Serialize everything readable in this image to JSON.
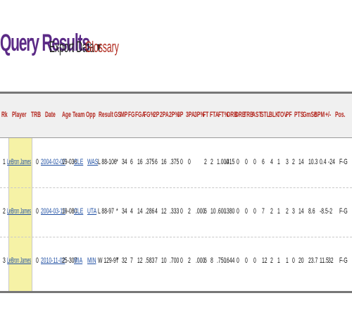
{
  "header": {
    "title": "Query Results",
    "export_label": "Export Data ▾",
    "glossary_label": "Glossary"
  },
  "table": {
    "columns": [
      "Rk",
      "Player",
      "TRB",
      "Date",
      "Age",
      "Team",
      "Opp",
      "Result",
      "GS",
      "MP",
      "FG",
      "FGA",
      "FG%",
      "2P",
      "2PA",
      "2P%",
      "3P",
      "3PA",
      "3P%",
      "FT",
      "FTA",
      "FT%",
      "ORB",
      "DRB",
      "TRB",
      "AST",
      "STL",
      "BLK",
      "TOV",
      "PF",
      "PTS",
      "GmSc",
      "BPM",
      "+/-",
      "Pos."
    ],
    "rows": [
      {
        "rk": "1",
        "player": "LeBron James",
        "trb_h": "0",
        "date": "2004-02-07",
        "age": "19-038",
        "team": "CLE",
        "opp": "WAS",
        "result": "L 88-106",
        "gs": "*",
        "mp": "34",
        "fg": "6",
        "fga": "16",
        "fgp": ".375",
        "p2": "6",
        "p2a": "16",
        "p2p": ".375",
        "p3": "0",
        "p3a": "0",
        "p3p": "",
        "ft": "2",
        "fta": "2",
        "ftp": "1.000",
        "ts": ".415",
        "orb": "0",
        "drb": "0",
        "trb": "0",
        "ast": "6",
        "stl": "4",
        "blk": "1",
        "tov": "3",
        "pf": "2",
        "pts": "14",
        "gmsc": "10.3",
        "bpm": "0.4",
        "pm": "-24",
        "pos": "F-G"
      },
      {
        "rk": "2",
        "player": "LeBron James",
        "trb_h": "0",
        "date": "2004-03-19",
        "age": "19-080",
        "team": "CLE",
        "opp": "UTA",
        "result": "L 88-97",
        "gs": "*",
        "mp": "34",
        "fg": "4",
        "fga": "14",
        "fgp": ".286",
        "p2": "4",
        "p2a": "12",
        "p2p": ".333",
        "p3": "0",
        "p3a": "2",
        "p3p": ".000",
        "ft": "6",
        "fta": "10",
        "ftp": ".600",
        "ts": ".380",
        "orb": "0",
        "drb": "0",
        "trb": "0",
        "ast": "7",
        "stl": "2",
        "blk": "1",
        "tov": "2",
        "pf": "3",
        "pts": "14",
        "gmsc": "8.6",
        "bpm": "-8.5",
        "pm": "-2",
        "pos": "F-G"
      },
      {
        "rk": "3",
        "player": "LeBron James",
        "trb_h": "0",
        "date": "2010-11-02",
        "age": "25-307",
        "team": "MIA",
        "opp": "MIN",
        "result": "W 129-97",
        "gs": "*",
        "mp": "32",
        "fg": "7",
        "fga": "12",
        "fgp": ".583",
        "p2": "7",
        "p2a": "10",
        "p2p": ".700",
        "p3": "0",
        "p3a": "2",
        "p3p": ".000",
        "ft": "6",
        "fta": "8",
        "ftp": ".750",
        "ts": ".644",
        "orb": "0",
        "drb": "0",
        "trb": "0",
        "ast": "12",
        "stl": "2",
        "blk": "1",
        "tov": "1",
        "pf": "0",
        "pts": "20",
        "gmsc": "23.7",
        "bpm": "11.5",
        "pm": "32",
        "pos": "F-G"
      }
    ]
  },
  "colors": {
    "title": "#5b2a86",
    "glossary": "#b0271b",
    "header_text": "#b3261e",
    "player_bg": "#f6f2a6",
    "link": "#1f4fa3"
  }
}
